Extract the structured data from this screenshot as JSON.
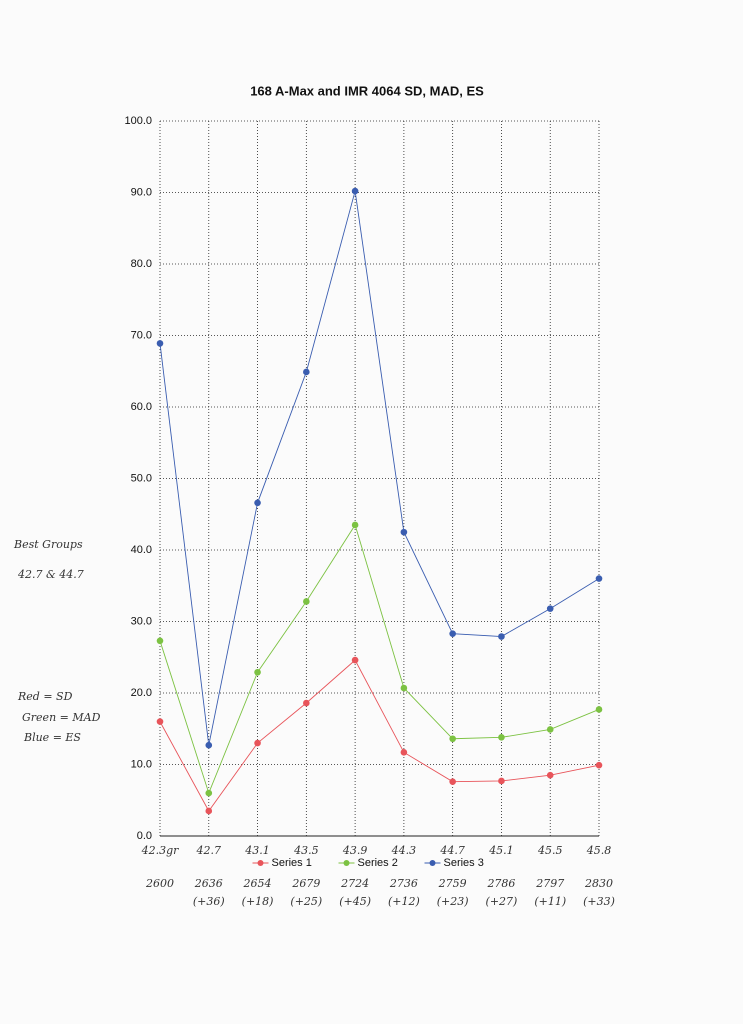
{
  "chart_data": {
    "type": "line",
    "title": "168 A-Max and IMR 4064 SD, MAD, ES",
    "categories": [
      "42.3gr",
      "42.7",
      "43.1",
      "43.5",
      "43.9",
      "44.3",
      "44.7",
      "45.1",
      "45.5",
      "45.8"
    ],
    "velocities": [
      "2600",
      "2636",
      "2654",
      "2679",
      "2724",
      "2736",
      "2759",
      "2786",
      "2797",
      "2830"
    ],
    "velocity_changes": [
      null,
      "(+36)",
      "(+18)",
      "(+25)",
      "(+45)",
      "(+12)",
      "(+23)",
      "(+27)",
      "(+11)",
      "(+33)"
    ],
    "series": [
      {
        "name": "Series 1",
        "color": "#e8545a",
        "values": [
          16.0,
          3.5,
          13.0,
          18.6,
          24.6,
          11.7,
          7.6,
          7.7,
          8.5,
          9.9
        ]
      },
      {
        "name": "Series 2",
        "color": "#7cc242",
        "values": [
          27.3,
          6.0,
          22.9,
          32.8,
          43.5,
          20.7,
          13.6,
          13.8,
          14.9,
          17.7
        ]
      },
      {
        "name": "Series 3",
        "color": "#3a5db0",
        "values": [
          68.9,
          12.7,
          46.6,
          64.9,
          90.2,
          42.5,
          28.3,
          27.9,
          31.8,
          36.0
        ]
      }
    ],
    "ylim": [
      0,
      100
    ],
    "yticks": [
      {
        "value": 0,
        "label": "0.0"
      },
      {
        "value": 10,
        "label": "10.0"
      },
      {
        "value": 20,
        "label": "20.0"
      },
      {
        "value": 30,
        "label": "30.0"
      },
      {
        "value": 40,
        "label": "40.0"
      },
      {
        "value": 50,
        "label": "50.0"
      },
      {
        "value": 60,
        "label": "60.0"
      },
      {
        "value": 70,
        "label": "70.0"
      },
      {
        "value": 80,
        "label": "80.0"
      },
      {
        "value": 90,
        "label": "90.0"
      },
      {
        "value": 100,
        "label": "100.0"
      }
    ],
    "grid": true,
    "legend": "bottom",
    "notes": [
      "Best Groups",
      "42.7 & 44.7",
      "Red = SD",
      "Green = MAD",
      "Blue = ES"
    ]
  }
}
